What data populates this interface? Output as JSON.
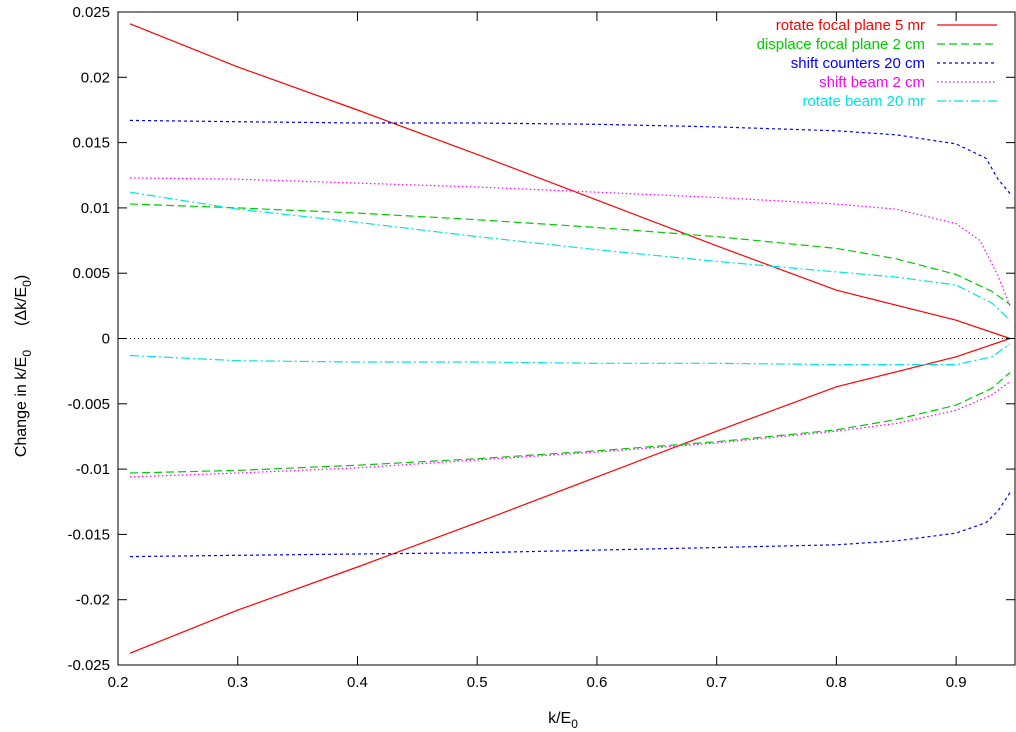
{
  "chart_data": {
    "type": "line",
    "xlabel": {
      "base": "k/E",
      "sub": "0"
    },
    "ylabel": {
      "part1": "Change in k/E",
      "sub1": "0",
      "part2": "(Δk/E",
      "sub2": "0",
      "part3": ")"
    },
    "xlim": [
      0.2,
      0.95
    ],
    "ylim": [
      -0.025,
      0.025
    ],
    "xticks": [
      0.2,
      0.3,
      0.4,
      0.5,
      0.6,
      0.7,
      0.8,
      0.9
    ],
    "xtick_labels": [
      "0.2",
      "0.3",
      "0.4",
      "0.5",
      "0.6",
      "0.7",
      "0.8",
      "0.9"
    ],
    "yticks": [
      -0.025,
      -0.02,
      -0.015,
      -0.01,
      -0.005,
      0,
      0.005,
      0.01,
      0.015,
      0.02,
      0.025
    ],
    "ytick_labels": [
      "-0.025",
      "-0.02",
      "-0.015",
      "-0.01",
      "-0.005",
      "0",
      "0.005",
      "0.01",
      "0.015",
      "0.02",
      "0.025"
    ],
    "grid": false,
    "legend_position": "top-right",
    "zero_line": {
      "style": "dotted",
      "color": "#000000"
    },
    "series": [
      {
        "name": "rotate focal plane 5 mr",
        "color": "#ff0000",
        "dash": "solid",
        "curves": [
          {
            "x": [
              0.21,
              0.3,
              0.4,
              0.5,
              0.6,
              0.7,
              0.8,
              0.9,
              0.945
            ],
            "y": [
              0.0241,
              0.0208,
              0.0175,
              0.0141,
              0.0106,
              0.0071,
              0.0037,
              0.0014,
              0.0
            ]
          },
          {
            "x": [
              0.21,
              0.3,
              0.4,
              0.5,
              0.6,
              0.7,
              0.8,
              0.9,
              0.945
            ],
            "y": [
              -0.0241,
              -0.0208,
              -0.0175,
              -0.0141,
              -0.0106,
              -0.0071,
              -0.0037,
              -0.0014,
              0.0
            ]
          }
        ]
      },
      {
        "name": "displace focal plane 2 cm",
        "color": "#00cc00",
        "dash": "8,4",
        "curves": [
          {
            "x": [
              0.21,
              0.3,
              0.4,
              0.5,
              0.6,
              0.7,
              0.8,
              0.85,
              0.9,
              0.93,
              0.945
            ],
            "y": [
              0.0103,
              0.01,
              0.0096,
              0.0091,
              0.0085,
              0.0078,
              0.0069,
              0.0061,
              0.0049,
              0.0036,
              0.0026
            ]
          },
          {
            "x": [
              0.21,
              0.3,
              0.4,
              0.5,
              0.6,
              0.7,
              0.8,
              0.85,
              0.9,
              0.93,
              0.945
            ],
            "y": [
              -0.0103,
              -0.0101,
              -0.0097,
              -0.0092,
              -0.0086,
              -0.0079,
              -0.007,
              -0.0062,
              -0.0051,
              -0.0038,
              -0.0026
            ]
          }
        ]
      },
      {
        "name": "shift counters 20 cm",
        "color": "#0000ff",
        "dash": "3,3",
        "curves": [
          {
            "x": [
              0.21,
              0.3,
              0.4,
              0.5,
              0.6,
              0.7,
              0.8,
              0.85,
              0.9,
              0.925,
              0.935,
              0.945
            ],
            "y": [
              0.0167,
              0.0166,
              0.0165,
              0.0165,
              0.0164,
              0.0162,
              0.0159,
              0.0156,
              0.0149,
              0.0138,
              0.0122,
              0.0111
            ]
          },
          {
            "x": [
              0.21,
              0.3,
              0.4,
              0.5,
              0.6,
              0.7,
              0.8,
              0.85,
              0.9,
              0.925,
              0.935,
              0.945
            ],
            "y": [
              -0.0167,
              -0.0166,
              -0.0165,
              -0.0164,
              -0.0162,
              -0.016,
              -0.0158,
              -0.0155,
              -0.0149,
              -0.0141,
              -0.0132,
              -0.0118
            ]
          }
        ]
      },
      {
        "name": "shift beam 2 cm",
        "color": "#ff00ff",
        "dash": "1.5,2.5",
        "curves": [
          {
            "x": [
              0.21,
              0.3,
              0.4,
              0.5,
              0.6,
              0.7,
              0.8,
              0.85,
              0.9,
              0.92,
              0.935,
              0.945
            ],
            "y": [
              0.0123,
              0.0122,
              0.0119,
              0.0116,
              0.0112,
              0.0108,
              0.0103,
              0.0099,
              0.0088,
              0.0075,
              0.0048,
              0.0025
            ]
          },
          {
            "x": [
              0.21,
              0.3,
              0.4,
              0.5,
              0.6,
              0.7,
              0.8,
              0.85,
              0.9,
              0.93,
              0.945
            ],
            "y": [
              -0.0106,
              -0.0103,
              -0.0099,
              -0.0093,
              -0.0087,
              -0.008,
              -0.0071,
              -0.0065,
              -0.0055,
              -0.0043,
              -0.0033
            ]
          }
        ]
      },
      {
        "name": "rotate beam 20 mr",
        "color": "#00e5e5",
        "dash": "9,3,2,3",
        "curves": [
          {
            "x": [
              0.21,
              0.3,
              0.4,
              0.5,
              0.6,
              0.7,
              0.8,
              0.85,
              0.9,
              0.93,
              0.945
            ],
            "y": [
              0.0112,
              0.0099,
              0.0089,
              0.0078,
              0.0068,
              0.0059,
              0.0051,
              0.0047,
              0.0041,
              0.0027,
              0.0014
            ]
          },
          {
            "x": [
              0.21,
              0.3,
              0.4,
              0.5,
              0.6,
              0.7,
              0.8,
              0.85,
              0.9,
              0.93,
              0.945
            ],
            "y": [
              -0.0013,
              -0.0017,
              -0.0018,
              -0.0018,
              -0.0019,
              -0.0019,
              -0.002,
              -0.002,
              -0.002,
              -0.0014,
              -0.0004
            ]
          }
        ]
      }
    ]
  }
}
